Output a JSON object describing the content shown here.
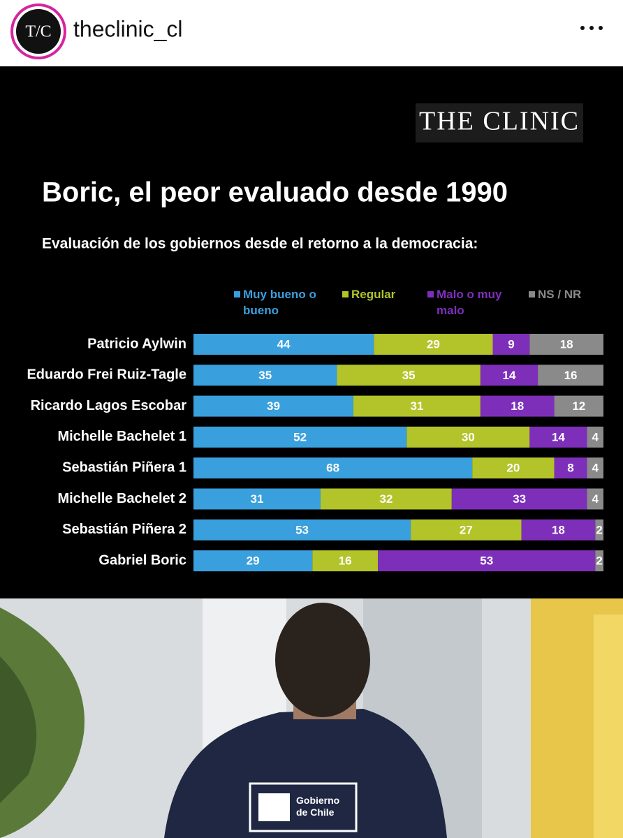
{
  "post": {
    "avatar_text": "T/C",
    "username": "theclinic_cl"
  },
  "logo": "THE CLINIC",
  "chart_data": {
    "type": "stacked-bar-horizontal",
    "title": "Boric, el peor evaluado desde 1990",
    "subtitle": "Evaluación de los gobiernos desde el retorno a la democracia:",
    "categories": [
      "Patricio Aylwin",
      "Eduardo Frei Ruiz-Tagle",
      "Ricardo Lagos Escobar",
      "Michelle Bachelet 1",
      "Sebastián Piñera 1",
      "Michelle Bachelet 2",
      "Sebastián Piñera 2",
      "Gabriel Boric"
    ],
    "xlim": [
      0,
      100
    ],
    "series": [
      {
        "name": "Muy bueno o bueno",
        "color": "#3a9fdd",
        "values": [
          44,
          35,
          39,
          52,
          68,
          31,
          53,
          29
        ]
      },
      {
        "name": "Regular",
        "color": "#b3c42a",
        "values": [
          29,
          35,
          31,
          30,
          20,
          32,
          27,
          16
        ]
      },
      {
        "name": "Malo o muy malo",
        "color": "#7e2fba",
        "values": [
          9,
          14,
          18,
          14,
          8,
          33,
          18,
          53
        ]
      },
      {
        "name": "NS / NR",
        "color": "#8a8a8a",
        "values": [
          18,
          16,
          12,
          4,
          4,
          4,
          2,
          2
        ]
      }
    ]
  },
  "photo": {
    "badge_text": "Gobierno de Chile"
  }
}
